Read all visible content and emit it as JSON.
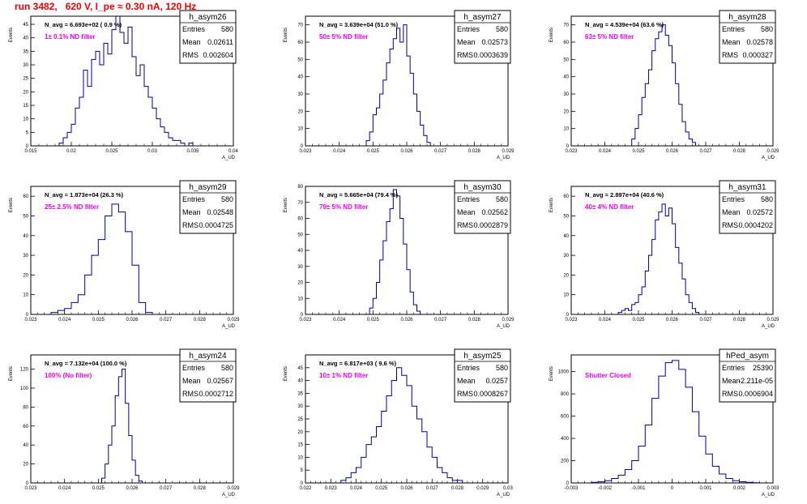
{
  "page": {
    "title": "run 3482,   620 V, I_pe ≈ 0.30 nA, 120 Hz"
  },
  "colors": {
    "title": "#ee0000",
    "annotation": "#ee00ee",
    "histogram": "#000099",
    "axes": "#000000"
  },
  "chart_data": [
    {
      "type": "histogram",
      "name": "h_asym26",
      "nav": "N_avg = 6.693e+02 ( 0.9 %)",
      "label": "1± 0.1% ND filter",
      "stats": [
        [
          "Entries",
          "580"
        ],
        [
          "Mean",
          "0.02611"
        ],
        [
          "RMS",
          "0.002604"
        ]
      ],
      "xlim": [
        0.015,
        0.04
      ],
      "ylim": [
        0,
        48
      ],
      "ylabel": "Events",
      "xlabel": "A_UD",
      "xticks": [
        0.015,
        0.02,
        0.025,
        0.03,
        0.035,
        0.04
      ],
      "xtick_labels": [
        "0.015",
        "0.02",
        "0.025",
        "0.03",
        "0.035",
        "0.04"
      ],
      "yticks": [
        0,
        5,
        10,
        15,
        20,
        25,
        30,
        35,
        40,
        45
      ],
      "x": [
        0.0185,
        0.019,
        0.0195,
        0.02,
        0.0205,
        0.021,
        0.0215,
        0.022,
        0.0225,
        0.023,
        0.0235,
        0.024,
        0.0245,
        0.025,
        0.0255,
        0.026,
        0.0265,
        0.027,
        0.0275,
        0.028,
        0.0285,
        0.029,
        0.0295,
        0.03,
        0.0305,
        0.031,
        0.0315,
        0.032,
        0.0325,
        0.033,
        0.0335,
        0.034,
        0.0345
      ],
      "values": [
        1,
        3,
        5,
        8,
        14,
        18,
        28,
        22,
        32,
        35,
        30,
        38,
        34,
        43,
        50,
        42,
        38,
        44,
        33,
        26,
        30,
        22,
        18,
        14,
        10,
        7,
        5,
        3,
        2,
        2,
        1,
        0,
        1
      ]
    },
    {
      "type": "histogram",
      "name": "h_asym27",
      "nav": "N_avg = 3.639e+04 (51.0 %)",
      "label": "50± 5% ND filter",
      "stats": [
        [
          "Entries",
          "580"
        ],
        [
          "Mean",
          "0.02573"
        ],
        [
          "RMS",
          "0.0003639"
        ]
      ],
      "xlim": [
        0.023,
        0.029
      ],
      "ylim": [
        0,
        75
      ],
      "ylabel": "Events",
      "xlabel": "A_UD",
      "xticks": [
        0.023,
        0.024,
        0.025,
        0.026,
        0.027,
        0.028,
        0.029
      ],
      "xtick_labels": [
        "0.023",
        "0.024",
        "0.025",
        "0.026",
        "0.027",
        "0.028",
        "0.029"
      ],
      "yticks": [
        0,
        10,
        20,
        30,
        40,
        50,
        60,
        70
      ],
      "x": [
        0.0248,
        0.0249,
        0.025,
        0.0251,
        0.0252,
        0.0253,
        0.0254,
        0.0255,
        0.0256,
        0.0257,
        0.0258,
        0.0259,
        0.026,
        0.0261,
        0.0262,
        0.0263,
        0.0264,
        0.0265,
        0.0266
      ],
      "values": [
        3,
        8,
        18,
        22,
        30,
        38,
        48,
        56,
        62,
        68,
        60,
        70,
        52,
        42,
        30,
        20,
        12,
        6,
        2
      ]
    },
    {
      "type": "histogram",
      "name": "h_asym28",
      "nav": "N_avg = 4.539e+04 (63.6 %)",
      "label": "63± 5% ND filter",
      "stats": [
        [
          "Entries",
          "580"
        ],
        [
          "Mean",
          "0.02578"
        ],
        [
          "RMS",
          "0.000327"
        ]
      ],
      "xlim": [
        0.023,
        0.029
      ],
      "ylim": [
        0,
        75
      ],
      "ylabel": "Events",
      "xlabel": "A_UD",
      "xticks": [
        0.023,
        0.024,
        0.025,
        0.026,
        0.027,
        0.028,
        0.029
      ],
      "xtick_labels": [
        "0.023",
        "0.024",
        "0.025",
        "0.026",
        "0.027",
        "0.028",
        "0.029"
      ],
      "yticks": [
        0,
        10,
        20,
        30,
        40,
        50,
        60,
        70
      ],
      "x": [
        0.0248,
        0.0249,
        0.025,
        0.0251,
        0.0252,
        0.0253,
        0.0254,
        0.0255,
        0.0256,
        0.0257,
        0.0258,
        0.0259,
        0.026,
        0.0261,
        0.0262,
        0.0263,
        0.0264,
        0.0265,
        0.0266
      ],
      "values": [
        4,
        10,
        18,
        28,
        36,
        44,
        55,
        62,
        66,
        70,
        64,
        58,
        48,
        36,
        24,
        14,
        8,
        4,
        2
      ]
    },
    {
      "type": "histogram",
      "name": "h_asym29",
      "nav": "N_avg = 1.873e+04 (26.3 %)",
      "label": "25± 2.5% ND filter",
      "stats": [
        [
          "Entries",
          "580"
        ],
        [
          "Mean",
          "0.02548"
        ],
        [
          "RMS",
          "0.0004725"
        ]
      ],
      "xlim": [
        0.023,
        0.029
      ],
      "ylim": [
        0,
        65
      ],
      "ylabel": "Events",
      "xlabel": "A_UD",
      "xticks": [
        0.023,
        0.024,
        0.025,
        0.026,
        0.027,
        0.028,
        0.029
      ],
      "xtick_labels": [
        "0.023",
        "0.024",
        "0.025",
        "0.026",
        "0.027",
        "0.028",
        "0.029"
      ],
      "yticks": [
        0,
        10,
        20,
        30,
        40,
        50,
        60
      ],
      "x": [
        0.0236,
        0.0238,
        0.024,
        0.0242,
        0.0244,
        0.0246,
        0.0248,
        0.025,
        0.0252,
        0.0254,
        0.0256,
        0.0258,
        0.026,
        0.0262,
        0.0264
      ],
      "values": [
        1,
        2,
        3,
        6,
        10,
        20,
        30,
        38,
        50,
        56,
        52,
        42,
        25,
        6,
        1
      ]
    },
    {
      "type": "histogram",
      "name": "h_asym30",
      "nav": "N_avg = 5.665e+04 (79.4 %)",
      "label": "79± 5% ND filter",
      "stats": [
        [
          "Entries",
          "580"
        ],
        [
          "Mean",
          "0.02562"
        ],
        [
          "RMS",
          "0.0002879"
        ]
      ],
      "xlim": [
        0.023,
        0.029
      ],
      "ylim": [
        0,
        80
      ],
      "ylabel": "Events",
      "xlabel": "A_UD",
      "xticks": [
        0.023,
        0.024,
        0.025,
        0.026,
        0.027,
        0.028,
        0.029
      ],
      "xtick_labels": [
        "0.023",
        "0.024",
        "0.025",
        "0.026",
        "0.027",
        "0.028",
        "0.029"
      ],
      "yticks": [
        0,
        10,
        20,
        30,
        40,
        50,
        60,
        70,
        80
      ],
      "x": [
        0.0249,
        0.025,
        0.0251,
        0.0252,
        0.0253,
        0.0254,
        0.0255,
        0.0256,
        0.0257,
        0.0258,
        0.0259,
        0.026,
        0.0261,
        0.0262,
        0.0263
      ],
      "values": [
        4,
        10,
        20,
        34,
        46,
        58,
        66,
        78,
        74,
        60,
        44,
        28,
        14,
        6,
        2
      ]
    },
    {
      "type": "histogram",
      "name": "h_asym31",
      "nav": "N_avg = 2.897e+04 (40.6 %)",
      "label": "40± 4% ND filter",
      "stats": [
        [
          "Entries",
          "580"
        ],
        [
          "Mean",
          "0.02572"
        ],
        [
          "RMS",
          "0.0004202"
        ]
      ],
      "xlim": [
        0.023,
        0.029
      ],
      "ylim": [
        0,
        65
      ],
      "ylabel": "Events",
      "xlabel": "A_UD",
      "xticks": [
        0.023,
        0.024,
        0.025,
        0.026,
        0.027,
        0.028,
        0.029
      ],
      "xtick_labels": [
        "0.023",
        "0.024",
        "0.025",
        "0.026",
        "0.027",
        "0.028",
        "0.029"
      ],
      "yticks": [
        0,
        10,
        20,
        30,
        40,
        50,
        60
      ],
      "x": [
        0.0244,
        0.0245,
        0.0246,
        0.0247,
        0.0248,
        0.0249,
        0.025,
        0.0251,
        0.0252,
        0.0253,
        0.0254,
        0.0255,
        0.0256,
        0.0257,
        0.0258,
        0.0259,
        0.026,
        0.0261,
        0.0262,
        0.0263,
        0.0264,
        0.0265,
        0.0266,
        0.0267
      ],
      "values": [
        1,
        2,
        3,
        2,
        5,
        6,
        10,
        14,
        22,
        30,
        38,
        48,
        52,
        56,
        50,
        54,
        46,
        34,
        26,
        18,
        10,
        6,
        3,
        1
      ]
    },
    {
      "type": "histogram",
      "name": "h_asym24",
      "nav": "N_avg = 7.132e+04 (100.0 %)",
      "label": "100% (No filter)",
      "stats": [
        [
          "Entries",
          "580"
        ],
        [
          "Mean",
          "0.02567"
        ],
        [
          "RMS",
          "0.0002712"
        ]
      ],
      "xlim": [
        0.023,
        0.029
      ],
      "ylim": [
        0,
        135
      ],
      "ylabel": "Events",
      "xlabel": "A_UD",
      "xticks": [
        0.023,
        0.024,
        0.025,
        0.026,
        0.027,
        0.028,
        0.029
      ],
      "xtick_labels": [
        "0.023",
        "0.024",
        "0.025",
        "0.026",
        "0.027",
        "0.028",
        "0.029"
      ],
      "yticks": [
        0,
        20,
        40,
        60,
        80,
        100,
        120
      ],
      "x": [
        0.0251,
        0.0252,
        0.0253,
        0.0254,
        0.0255,
        0.0256,
        0.0257,
        0.0258,
        0.0259,
        0.026,
        0.0261,
        0.0262
      ],
      "values": [
        5,
        20,
        40,
        60,
        92,
        112,
        120,
        84,
        50,
        24,
        8,
        2
      ]
    },
    {
      "type": "histogram",
      "name": "h_asym25",
      "nav": "N_avg = 6.817e+03 ( 9.6 %)",
      "label": "10± 1% ND filter",
      "stats": [
        [
          "Entries",
          "580"
        ],
        [
          "Mean",
          "0.0257"
        ],
        [
          "RMS",
          "0.0008267"
        ]
      ],
      "xlim": [
        0.022,
        0.03
      ],
      "ylim": [
        0,
        50
      ],
      "ylabel": "Events",
      "xlabel": "A_UD",
      "xticks": [
        0.022,
        0.023,
        0.024,
        0.025,
        0.026,
        0.027,
        0.028,
        0.029,
        0.03
      ],
      "xtick_labels": [
        "0.022",
        "0.023",
        "0.024",
        "0.025",
        "0.026",
        "0.027",
        "0.028",
        "0.029",
        "0.03"
      ],
      "yticks": [
        0,
        5,
        10,
        15,
        20,
        25,
        30,
        35,
        40,
        45
      ],
      "x": [
        0.0234,
        0.0236,
        0.0238,
        0.024,
        0.0242,
        0.0244,
        0.0246,
        0.0248,
        0.025,
        0.0252,
        0.0254,
        0.0256,
        0.0258,
        0.026,
        0.0262,
        0.0264,
        0.0266,
        0.0268,
        0.027,
        0.0272,
        0.0274,
        0.0276,
        0.0278,
        0.028
      ],
      "values": [
        1,
        2,
        4,
        6,
        10,
        15,
        18,
        22,
        28,
        34,
        40,
        45,
        42,
        38,
        30,
        25,
        20,
        14,
        10,
        6,
        4,
        2,
        1,
        1
      ]
    },
    {
      "type": "histogram",
      "name": "hPed_asym",
      "nav": "",
      "label": "Shutter Closed",
      "stats": [
        [
          "Entries",
          "25390"
        ],
        [
          "Mean",
          "-2.211e-05"
        ],
        [
          "RMS",
          "0.0006904"
        ]
      ],
      "xlim": [
        -0.003,
        0.003
      ],
      "ylim": [
        0,
        1150
      ],
      "ylabel": "Events",
      "xlabel": "A_UD",
      "xticks": [
        -0.003,
        -0.002,
        -0.001,
        0,
        0.001,
        0.002,
        0.003
      ],
      "xtick_labels": [
        "-0.003",
        "-0.002",
        "-0.001",
        "0",
        "0.001",
        "0.002",
        "0.003"
      ],
      "yticks": [
        0,
        200,
        400,
        600,
        800,
        1000
      ],
      "x": [
        -0.0024,
        -0.0022,
        -0.002,
        -0.0018,
        -0.0016,
        -0.0014,
        -0.0012,
        -0.001,
        -0.0008,
        -0.0006,
        -0.0004,
        -0.0002,
        0,
        0.0002,
        0.0004,
        0.0006,
        0.0008,
        0.001,
        0.0012,
        0.0014,
        0.0016,
        0.0018,
        0.002,
        0.0022,
        0.0024
      ],
      "values": [
        5,
        10,
        20,
        40,
        70,
        120,
        200,
        330,
        520,
        760,
        960,
        1080,
        1100,
        1020,
        860,
        640,
        420,
        260,
        150,
        80,
        40,
        20,
        10,
        5,
        2
      ]
    }
  ]
}
